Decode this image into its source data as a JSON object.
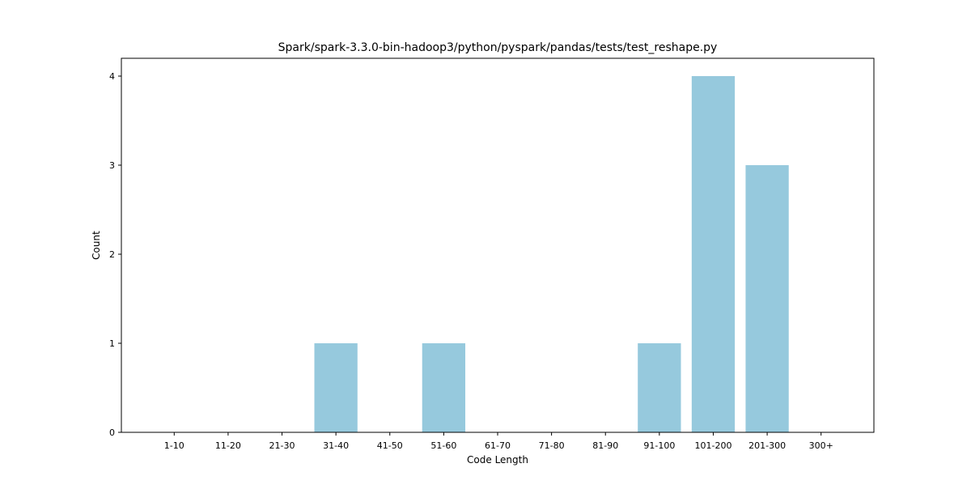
{
  "chart_data": {
    "type": "bar",
    "title": "Spark/spark-3.3.0-bin-hadoop3/python/pyspark/pandas/tests/test_reshape.py",
    "xlabel": "Code Length",
    "ylabel": "Count",
    "categories": [
      "1-10",
      "11-20",
      "21-30",
      "31-40",
      "41-50",
      "51-60",
      "61-70",
      "71-80",
      "81-90",
      "91-100",
      "101-200",
      "201-300",
      "300+"
    ],
    "values": [
      0,
      0,
      0,
      1,
      0,
      1,
      0,
      0,
      0,
      1,
      4,
      3,
      0
    ],
    "ylim": [
      0,
      4.2
    ],
    "yticks": [
      "0",
      "1",
      "2",
      "3",
      "4"
    ],
    "grid": false,
    "bar_color": "#96c9dd"
  }
}
